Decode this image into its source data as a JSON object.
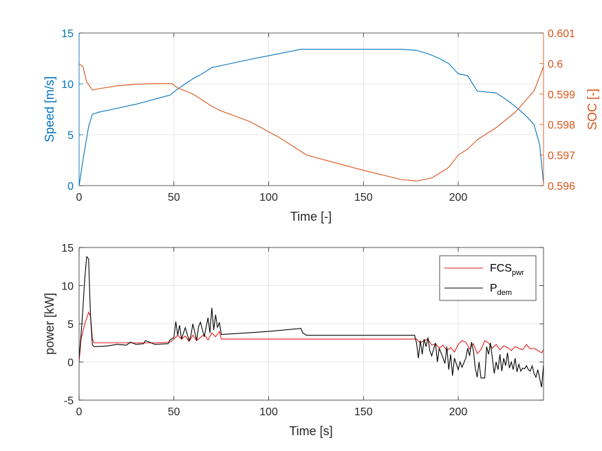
{
  "colors": {
    "speed": "#0072BD",
    "soc": "#D95319",
    "fcs": "#E41A1C",
    "pdem": "#000000",
    "axis": "#262626",
    "grid": "#DFDFDF"
  },
  "chart_data": [
    {
      "type": "line",
      "title": "",
      "xlabel": "Time [-]",
      "ylabel_left": "Speed [m/s]",
      "ylabel_right": "SOC [-]",
      "xlim": [
        0,
        245
      ],
      "ylim_left": [
        0,
        15
      ],
      "ylim_right": [
        0.596,
        0.601
      ],
      "xticks": [
        0,
        50,
        100,
        150,
        200
      ],
      "xtick_labels": [
        "0",
        "50",
        "100",
        "150",
        "200"
      ],
      "yticks_left": [
        0,
        5,
        10,
        15
      ],
      "ytick_labels_left": [
        "0",
        "5",
        "10",
        "15"
      ],
      "yticks_right": [
        0.596,
        0.597,
        0.598,
        0.599,
        0.6,
        0.601
      ],
      "ytick_labels_right": [
        "0.596",
        "0.597",
        "0.598",
        "0.599",
        "0.6",
        "0.601"
      ],
      "grid": true,
      "series": [
        {
          "name": "Speed",
          "axis": "left",
          "x": [
            0,
            2,
            5,
            7,
            10,
            20,
            30,
            40,
            48,
            52,
            56,
            60,
            65,
            70,
            75,
            90,
            117,
            130,
            150,
            170,
            178,
            185,
            190,
            195,
            200,
            205,
            210,
            220,
            225,
            230,
            235,
            240,
            243,
            245
          ],
          "y": [
            0,
            2.5,
            5.8,
            7.0,
            7.2,
            7.6,
            8.0,
            8.5,
            8.9,
            9.5,
            10.0,
            10.5,
            11.0,
            11.6,
            11.8,
            12.4,
            13.4,
            13.4,
            13.4,
            13.4,
            13.3,
            12.9,
            12.5,
            12.0,
            11.0,
            10.8,
            9.3,
            9.1,
            8.5,
            7.8,
            7.0,
            6.0,
            4.0,
            0.2
          ]
        },
        {
          "name": "SOC",
          "axis": "right",
          "x": [
            0,
            2,
            4,
            7,
            10,
            20,
            30,
            40,
            49,
            52,
            55,
            60,
            65,
            70,
            74,
            90,
            105,
            117,
            120,
            150,
            170,
            178,
            182,
            186,
            190,
            195,
            200,
            205,
            210,
            215,
            220,
            230,
            240,
            245
          ],
          "y": [
            0.59999,
            0.5999,
            0.5994,
            0.59913,
            0.59917,
            0.59927,
            0.59932,
            0.59934,
            0.59934,
            0.5992,
            0.59913,
            0.599,
            0.5988,
            0.5986,
            0.59847,
            0.5981,
            0.5976,
            0.59712,
            0.597,
            0.5965,
            0.5962,
            0.59615,
            0.5962,
            0.59625,
            0.5964,
            0.5966,
            0.597,
            0.5972,
            0.5975,
            0.5977,
            0.5979,
            0.5984,
            0.5991,
            0.5999
          ]
        }
      ]
    },
    {
      "type": "line",
      "title": "",
      "xlabel": "Time [s]",
      "ylabel": "power [kW]",
      "xlim": [
        0,
        245
      ],
      "ylim": [
        -5,
        15
      ],
      "xticks": [
        0,
        50,
        100,
        150,
        200
      ],
      "xtick_labels": [
        "0",
        "50",
        "100",
        "150",
        "200"
      ],
      "yticks": [
        -5,
        0,
        5,
        10,
        15
      ],
      "ytick_labels": [
        "-5",
        "0",
        "5",
        "10",
        "15"
      ],
      "grid": true,
      "legend_position": "top-right",
      "series": [
        {
          "name": "FCS",
          "sub": "pwr",
          "x": [
            0,
            1,
            3,
            5,
            6,
            7,
            8,
            20,
            30,
            40,
            48,
            50,
            52,
            54,
            56,
            58,
            60,
            62,
            64,
            66,
            68,
            70,
            72,
            74,
            75,
            100,
            120,
            150,
            176,
            178,
            180,
            182,
            184,
            186,
            188,
            190,
            192,
            194,
            196,
            198,
            200,
            202,
            204,
            206,
            208,
            210,
            212,
            214,
            216,
            218,
            220,
            222,
            224,
            226,
            228,
            230,
            232,
            234,
            236,
            238,
            240,
            242,
            244,
            245
          ],
          "y": [
            0,
            3,
            5,
            6.5,
            6.0,
            3.0,
            2.5,
            2.5,
            2.5,
            2.5,
            2.6,
            3.0,
            3.5,
            3.0,
            3.4,
            2.7,
            3.5,
            2.8,
            3.2,
            3.6,
            2.9,
            3.8,
            3.3,
            4.0,
            3.0,
            3.0,
            3.0,
            3.0,
            3.0,
            3.0,
            2.5,
            2.8,
            3.0,
            2.2,
            2.4,
            1.8,
            2.2,
            1.5,
            1.9,
            1.3,
            2.3,
            2.8,
            2.6,
            1.7,
            2.4,
            1.1,
            1.6,
            2.8,
            2.5,
            1.8,
            2.3,
            1.6,
            2.1,
            1.9,
            1.5,
            2.0,
            1.8,
            1.6,
            2.3,
            1.7,
            1.8,
            1.5,
            1.2,
            1.6
          ]
        },
        {
          "name": "P",
          "sub": "dem",
          "x": [
            0,
            1,
            2,
            3,
            4,
            5,
            6,
            7,
            8,
            15,
            20,
            25,
            27,
            30,
            34,
            35,
            40,
            47,
            48,
            50,
            51,
            52,
            53,
            54,
            56,
            58,
            59,
            60,
            62,
            63,
            64,
            66,
            68,
            69,
            70,
            71,
            72,
            73,
            74,
            75,
            100,
            117,
            118,
            120,
            150,
            176,
            177,
            178,
            179,
            180,
            181,
            182,
            183,
            184,
            185,
            186,
            188,
            189,
            190,
            192,
            193,
            194,
            195,
            196,
            197,
            198,
            200,
            201,
            202,
            204,
            205,
            206,
            207,
            208,
            209,
            210,
            211,
            212,
            214,
            215,
            216,
            217,
            218,
            219,
            220,
            221,
            222,
            223,
            224,
            225,
            226,
            227,
            228,
            229,
            230,
            231,
            232,
            233,
            234,
            235,
            236,
            237,
            238,
            239,
            240,
            241,
            242,
            243,
            244,
            245
          ],
          "y": [
            0.5,
            3.5,
            7,
            11,
            13.8,
            13.5,
            6,
            2.2,
            2.0,
            2.1,
            2.3,
            2.2,
            2.6,
            2.3,
            2.4,
            2.8,
            2.3,
            2.4,
            2.9,
            3.2,
            5.3,
            3.5,
            4.8,
            3.0,
            4.5,
            2.8,
            3.5,
            5.0,
            2.8,
            4.6,
            5.2,
            3.3,
            5.8,
            3.8,
            7.1,
            4.2,
            6.2,
            4.5,
            5.2,
            3.6,
            4.0,
            4.4,
            3.8,
            3.5,
            3.5,
            3.5,
            3.5,
            2.5,
            0.5,
            2.8,
            1.0,
            3.0,
            2.0,
            3.2,
            1.5,
            0.8,
            2.5,
            0.0,
            1.8,
            0.5,
            -0.2,
            2.0,
            -1.0,
            1.0,
            -1.8,
            0.5,
            -1.0,
            0.0,
            -0.7,
            0.5,
            1.8,
            0.8,
            2.6,
            1.5,
            -0.8,
            -2.0,
            0.0,
            -2.1,
            -2.1,
            2.0,
            1.0,
            2.5,
            0.5,
            -1.5,
            0.0,
            -1.0,
            1.0,
            -1.2,
            0.5,
            -0.5,
            1.2,
            -0.8,
            0.0,
            -1.0,
            0.5,
            -1.3,
            -0.3,
            -1.2,
            -0.8,
            -0.9,
            -0.5,
            -1.0,
            -1.2,
            -0.5,
            -1.5,
            -2.0,
            -1.0,
            -2.2,
            -3.3,
            -0.4
          ]
        }
      ]
    }
  ]
}
